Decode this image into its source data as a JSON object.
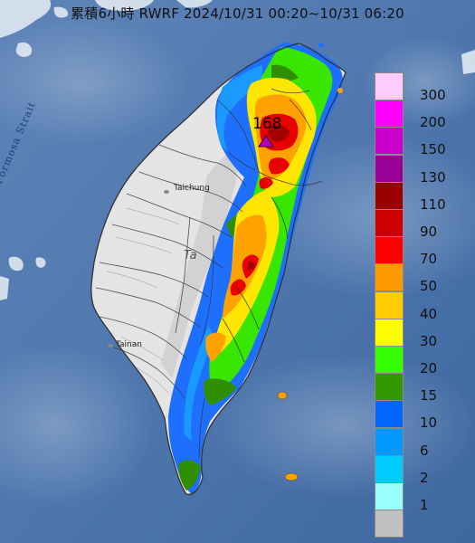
{
  "title": "累積6小時 RWRF 2024/10/31 00:20~10/31 06:20",
  "labels": {
    "strait": "Formosa Strait",
    "taichung": "Taichung",
    "tainan": "Tainan",
    "ta": "Ta",
    "max_value": "168"
  },
  "legend": {
    "items": [
      {
        "label": "300",
        "color": "#ffccff"
      },
      {
        "label": "200",
        "color": "#ff00ff"
      },
      {
        "label": "150",
        "color": "#cc00cc"
      },
      {
        "label": "130",
        "color": "#990099"
      },
      {
        "label": "110",
        "color": "#990000"
      },
      {
        "label": "90",
        "color": "#cc0000"
      },
      {
        "label": "70",
        "color": "#ff0000"
      },
      {
        "label": "50",
        "color": "#ff9900"
      },
      {
        "label": "40",
        "color": "#ffcc00"
      },
      {
        "label": "30",
        "color": "#ffff00"
      },
      {
        "label": "20",
        "color": "#33ff00"
      },
      {
        "label": "15",
        "color": "#339900"
      },
      {
        "label": "10",
        "color": "#0066ff"
      },
      {
        "label": "6",
        "color": "#0099ff"
      },
      {
        "label": "2",
        "color": "#00ccff"
      },
      {
        "label": "1",
        "color": "#99ffff"
      },
      {
        "label": "",
        "color": "#c0c0c0"
      }
    ]
  }
}
